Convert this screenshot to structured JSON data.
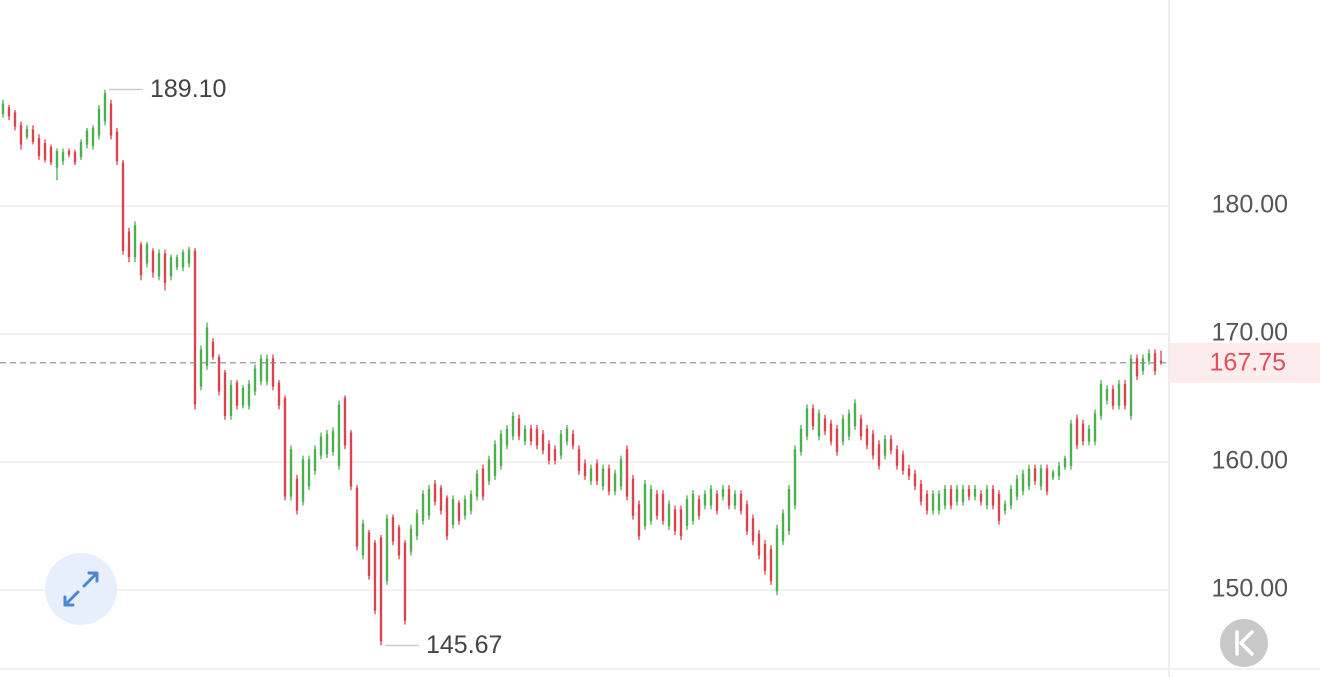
{
  "chart_data": {
    "type": "candlestick",
    "up_color": "#4caf50",
    "down_color": "#d9444f",
    "ylim": [
      143.91,
      196.09
    ],
    "yticks": [
      {
        "value": 150,
        "label": "150.00"
      },
      {
        "value": 160,
        "label": "160.00"
      },
      {
        "value": 170,
        "label": "170.00"
      },
      {
        "value": 180,
        "label": "180.00"
      }
    ],
    "grid": true,
    "last_price": 167.75,
    "max_label": {
      "value": 189.1,
      "label": "189.10"
    },
    "min_label": 145.67,
    "ohlc": [
      [
        187.2,
        188.3,
        186.9,
        188.0
      ],
      [
        187.7,
        187.9,
        186.7,
        187.0
      ],
      [
        187.3,
        187.5,
        185.9,
        186.2
      ],
      [
        186.3,
        186.6,
        184.4,
        184.8
      ],
      [
        185.4,
        186.3,
        185.2,
        186.0
      ],
      [
        186.0,
        186.3,
        184.8,
        185.0
      ],
      [
        185.3,
        185.6,
        183.6,
        183.9
      ],
      [
        184.9,
        185.2,
        183.4,
        183.6
      ],
      [
        184.6,
        184.8,
        183.2,
        183.4
      ],
      [
        183.0,
        184.5,
        182.0,
        184.3
      ],
      [
        183.5,
        184.5,
        183.2,
        184.2
      ],
      [
        184.3,
        184.5,
        183.8,
        184.0
      ],
      [
        184.2,
        184.4,
        183.2,
        183.4
      ],
      [
        183.8,
        185.2,
        183.6,
        185.0
      ],
      [
        184.8,
        186.1,
        184.5,
        185.9
      ],
      [
        184.7,
        186.3,
        184.4,
        186.1
      ],
      [
        185.5,
        187.9,
        185.2,
        187.6
      ],
      [
        186.6,
        189.1,
        186.3,
        188.8
      ],
      [
        188.0,
        188.3,
        185.2,
        185.5
      ],
      [
        185.8,
        186.1,
        183.2,
        183.5
      ],
      [
        183.4,
        183.6,
        176.2,
        176.5
      ],
      [
        178.0,
        178.3,
        175.6,
        176.0
      ],
      [
        176.0,
        178.8,
        175.6,
        178.5
      ],
      [
        177.0,
        177.2,
        174.2,
        174.6
      ],
      [
        175.5,
        177.2,
        175.2,
        177.0
      ],
      [
        176.5,
        176.7,
        174.4,
        174.8
      ],
      [
        174.5,
        176.6,
        174.2,
        176.3
      ],
      [
        176.3,
        176.6,
        173.4,
        174.0
      ],
      [
        174.5,
        176.2,
        174.2,
        176.0
      ],
      [
        175.2,
        176.2,
        175.0,
        176.0
      ],
      [
        175.2,
        176.6,
        174.9,
        176.4
      ],
      [
        175.5,
        176.8,
        175.2,
        176.6
      ],
      [
        176.5,
        176.7,
        164.1,
        164.5
      ],
      [
        165.9,
        169.1,
        165.6,
        168.8
      ],
      [
        167.5,
        170.9,
        167.2,
        170.5
      ],
      [
        169.4,
        169.7,
        168.0,
        168.2
      ],
      [
        168.2,
        168.4,
        165.2,
        165.5
      ],
      [
        167.0,
        167.2,
        163.3,
        163.6
      ],
      [
        163.6,
        166.4,
        163.3,
        166.0
      ],
      [
        166.2,
        166.4,
        164.1,
        164.4
      ],
      [
        164.4,
        166.0,
        164.2,
        165.8
      ],
      [
        164.4,
        166.4,
        164.1,
        166.1
      ],
      [
        165.5,
        167.6,
        165.2,
        167.3
      ],
      [
        166.3,
        168.4,
        166.0,
        168.1
      ],
      [
        166.3,
        168.4,
        166.0,
        168.1
      ],
      [
        168.1,
        168.4,
        165.6,
        165.9
      ],
      [
        166.2,
        166.4,
        164.1,
        164.4
      ],
      [
        165.0,
        165.2,
        157.0,
        157.3
      ],
      [
        157.3,
        161.3,
        157.0,
        161.0
      ],
      [
        158.7,
        159.0,
        155.9,
        156.2
      ],
      [
        156.9,
        160.5,
        156.6,
        160.2
      ],
      [
        158.1,
        160.5,
        157.8,
        160.2
      ],
      [
        159.3,
        161.3,
        159.0,
        161.0
      ],
      [
        160.5,
        162.3,
        160.2,
        162.0
      ],
      [
        160.6,
        162.5,
        160.3,
        162.2
      ],
      [
        160.8,
        162.7,
        160.5,
        162.4
      ],
      [
        159.7,
        164.8,
        159.4,
        164.5
      ],
      [
        165.0,
        165.2,
        161.0,
        161.3
      ],
      [
        162.3,
        162.5,
        157.8,
        158.1
      ],
      [
        158.0,
        158.2,
        153.1,
        153.4
      ],
      [
        152.7,
        155.5,
        152.4,
        155.2
      ],
      [
        154.5,
        154.7,
        150.8,
        151.1
      ],
      [
        153.7,
        153.9,
        148.1,
        148.4
      ],
      [
        154.1,
        154.3,
        145.67,
        146.0
      ],
      [
        150.7,
        155.9,
        150.4,
        155.6
      ],
      [
        155.7,
        155.9,
        153.5,
        153.8
      ],
      [
        154.9,
        155.1,
        152.4,
        152.7
      ],
      [
        153.7,
        153.9,
        147.3,
        147.6
      ],
      [
        153.0,
        155.1,
        152.7,
        154.8
      ],
      [
        154.2,
        156.3,
        153.9,
        156.0
      ],
      [
        155.4,
        157.8,
        155.1,
        157.5
      ],
      [
        155.8,
        158.2,
        155.5,
        157.9
      ],
      [
        158.3,
        158.6,
        156.6,
        156.9
      ],
      [
        158.0,
        158.2,
        155.9,
        156.2
      ],
      [
        157.2,
        157.4,
        153.9,
        154.2
      ],
      [
        155.1,
        157.4,
        154.8,
        157.1
      ],
      [
        156.8,
        157.0,
        155.1,
        155.4
      ],
      [
        155.8,
        157.4,
        155.5,
        157.1
      ],
      [
        156.2,
        157.8,
        155.9,
        157.5
      ],
      [
        157.3,
        159.4,
        157.0,
        159.1
      ],
      [
        159.5,
        159.8,
        157.0,
        157.3
      ],
      [
        158.5,
        160.5,
        158.2,
        160.2
      ],
      [
        158.9,
        161.7,
        158.6,
        161.4
      ],
      [
        159.7,
        162.5,
        159.4,
        162.2
      ],
      [
        161.3,
        162.9,
        161.0,
        162.6
      ],
      [
        162.0,
        163.9,
        161.7,
        163.6
      ],
      [
        163.4,
        163.7,
        161.7,
        162.0
      ],
      [
        161.6,
        162.9,
        161.3,
        162.6
      ],
      [
        162.6,
        162.9,
        161.3,
        161.6
      ],
      [
        162.6,
        162.9,
        161.0,
        161.3
      ],
      [
        162.2,
        162.5,
        160.6,
        160.9
      ],
      [
        161.4,
        161.7,
        159.8,
        160.1
      ],
      [
        161.0,
        161.3,
        159.8,
        160.1
      ],
      [
        160.5,
        162.5,
        160.2,
        162.2
      ],
      [
        161.6,
        162.9,
        161.3,
        162.6
      ],
      [
        162.2,
        162.5,
        161.0,
        161.3
      ],
      [
        161.0,
        161.3,
        159.0,
        159.3
      ],
      [
        159.9,
        160.2,
        158.6,
        158.9
      ],
      [
        158.5,
        159.8,
        158.2,
        159.5
      ],
      [
        159.9,
        160.2,
        158.2,
        158.5
      ],
      [
        158.1,
        159.8,
        157.8,
        159.5
      ],
      [
        159.5,
        159.8,
        157.4,
        157.7
      ],
      [
        157.7,
        159.4,
        157.4,
        159.1
      ],
      [
        158.1,
        160.5,
        157.8,
        160.2
      ],
      [
        161.0,
        161.3,
        157.0,
        157.3
      ],
      [
        158.7,
        159.0,
        155.5,
        155.8
      ],
      [
        156.7,
        157.0,
        153.9,
        154.2
      ],
      [
        155.0,
        158.6,
        154.7,
        158.3
      ],
      [
        155.4,
        158.2,
        155.1,
        157.9
      ],
      [
        157.5,
        157.8,
        155.5,
        155.8
      ],
      [
        157.5,
        157.8,
        155.1,
        155.4
      ],
      [
        155.0,
        157.0,
        154.7,
        156.7
      ],
      [
        156.3,
        156.6,
        154.3,
        154.6
      ],
      [
        156.3,
        156.6,
        153.9,
        154.2
      ],
      [
        155.0,
        157.4,
        154.7,
        157.1
      ],
      [
        155.4,
        157.8,
        155.1,
        157.5
      ],
      [
        157.1,
        157.4,
        155.5,
        155.8
      ],
      [
        156.6,
        157.8,
        156.3,
        157.5
      ],
      [
        156.6,
        158.2,
        156.3,
        157.9
      ],
      [
        157.5,
        157.8,
        155.9,
        156.2
      ],
      [
        157.3,
        158.2,
        157.0,
        157.9
      ],
      [
        157.9,
        158.2,
        156.3,
        156.6
      ],
      [
        156.6,
        157.8,
        156.3,
        157.5
      ],
      [
        157.5,
        157.8,
        155.9,
        156.2
      ],
      [
        156.7,
        157.0,
        154.3,
        154.6
      ],
      [
        155.6,
        155.9,
        153.5,
        153.8
      ],
      [
        154.4,
        154.7,
        152.4,
        152.7
      ],
      [
        153.6,
        153.9,
        151.2,
        151.5
      ],
      [
        153.2,
        153.5,
        150.4,
        150.7
      ],
      [
        149.9,
        155.1,
        149.6,
        154.8
      ],
      [
        153.8,
        156.3,
        153.5,
        156.0
      ],
      [
        154.6,
        158.2,
        154.3,
        157.9
      ],
      [
        156.6,
        161.3,
        156.3,
        161.0
      ],
      [
        160.8,
        162.9,
        160.5,
        162.6
      ],
      [
        162.0,
        164.5,
        161.7,
        164.2
      ],
      [
        164.2,
        164.5,
        162.5,
        162.8
      ],
      [
        162.0,
        164.1,
        161.7,
        163.8
      ],
      [
        163.4,
        163.7,
        162.1,
        162.4
      ],
      [
        163.0,
        163.3,
        161.3,
        161.6
      ],
      [
        162.6,
        162.9,
        160.5,
        160.8
      ],
      [
        161.6,
        163.7,
        161.3,
        163.4
      ],
      [
        162.0,
        164.1,
        161.7,
        163.8
      ],
      [
        162.8,
        164.9,
        162.5,
        164.6
      ],
      [
        163.4,
        163.7,
        161.7,
        162.0
      ],
      [
        162.6,
        162.9,
        161.0,
        161.3
      ],
      [
        162.2,
        162.5,
        160.2,
        160.5
      ],
      [
        161.4,
        161.7,
        159.4,
        159.7
      ],
      [
        160.5,
        162.1,
        160.2,
        161.8
      ],
      [
        161.8,
        162.1,
        160.6,
        160.9
      ],
      [
        161.0,
        161.3,
        159.4,
        159.7
      ],
      [
        160.6,
        160.9,
        159.0,
        159.3
      ],
      [
        159.5,
        159.8,
        158.6,
        158.9
      ],
      [
        159.1,
        159.4,
        157.8,
        158.1
      ],
      [
        158.3,
        158.6,
        156.6,
        156.9
      ],
      [
        157.5,
        157.8,
        155.9,
        156.2
      ],
      [
        156.2,
        157.8,
        155.9,
        157.5
      ],
      [
        156.2,
        157.8,
        155.9,
        157.5
      ],
      [
        156.6,
        158.2,
        156.3,
        157.9
      ],
      [
        157.9,
        158.2,
        156.3,
        156.6
      ],
      [
        156.9,
        158.2,
        156.6,
        157.9
      ],
      [
        156.9,
        158.2,
        156.6,
        157.9
      ],
      [
        157.9,
        158.2,
        157.0,
        157.3
      ],
      [
        157.3,
        158.2,
        157.0,
        157.9
      ],
      [
        157.5,
        157.8,
        156.6,
        156.9
      ],
      [
        156.6,
        158.2,
        156.3,
        157.9
      ],
      [
        157.9,
        158.2,
        156.3,
        156.6
      ],
      [
        157.5,
        157.8,
        155.1,
        155.4
      ],
      [
        156.2,
        157.0,
        155.9,
        156.7
      ],
      [
        156.6,
        158.2,
        156.3,
        157.9
      ],
      [
        157.3,
        159.0,
        157.0,
        158.7
      ],
      [
        157.7,
        159.4,
        157.4,
        159.1
      ],
      [
        158.1,
        159.8,
        157.8,
        159.5
      ],
      [
        159.5,
        159.8,
        158.2,
        158.5
      ],
      [
        158.1,
        159.8,
        157.8,
        159.5
      ],
      [
        159.5,
        159.8,
        157.4,
        157.7
      ],
      [
        158.8,
        159.4,
        158.6,
        159.2
      ],
      [
        158.9,
        160.0,
        158.6,
        159.7
      ],
      [
        159.6,
        160.5,
        159.4,
        160.3
      ],
      [
        159.7,
        163.3,
        159.4,
        163.0
      ],
      [
        163.4,
        163.7,
        161.0,
        161.3
      ],
      [
        163.0,
        163.3,
        161.3,
        161.6
      ],
      [
        161.6,
        162.9,
        161.3,
        162.6
      ],
      [
        161.6,
        164.1,
        161.3,
        163.8
      ],
      [
        163.6,
        166.4,
        163.3,
        166.1
      ],
      [
        164.8,
        166.0,
        164.5,
        165.7
      ],
      [
        165.7,
        166.0,
        164.1,
        164.4
      ],
      [
        164.4,
        166.4,
        164.1,
        166.1
      ],
      [
        166.1,
        166.4,
        164.1,
        164.4
      ],
      [
        163.6,
        168.4,
        163.3,
        168.1
      ],
      [
        168.1,
        168.4,
        166.4,
        166.7
      ],
      [
        167.1,
        168.4,
        166.8,
        168.1
      ],
      [
        167.9,
        168.8,
        167.6,
        168.5
      ],
      [
        168.5,
        168.8,
        166.8,
        167.1
      ],
      [
        167.9,
        168.7,
        167.6,
        167.75
      ]
    ]
  }
}
